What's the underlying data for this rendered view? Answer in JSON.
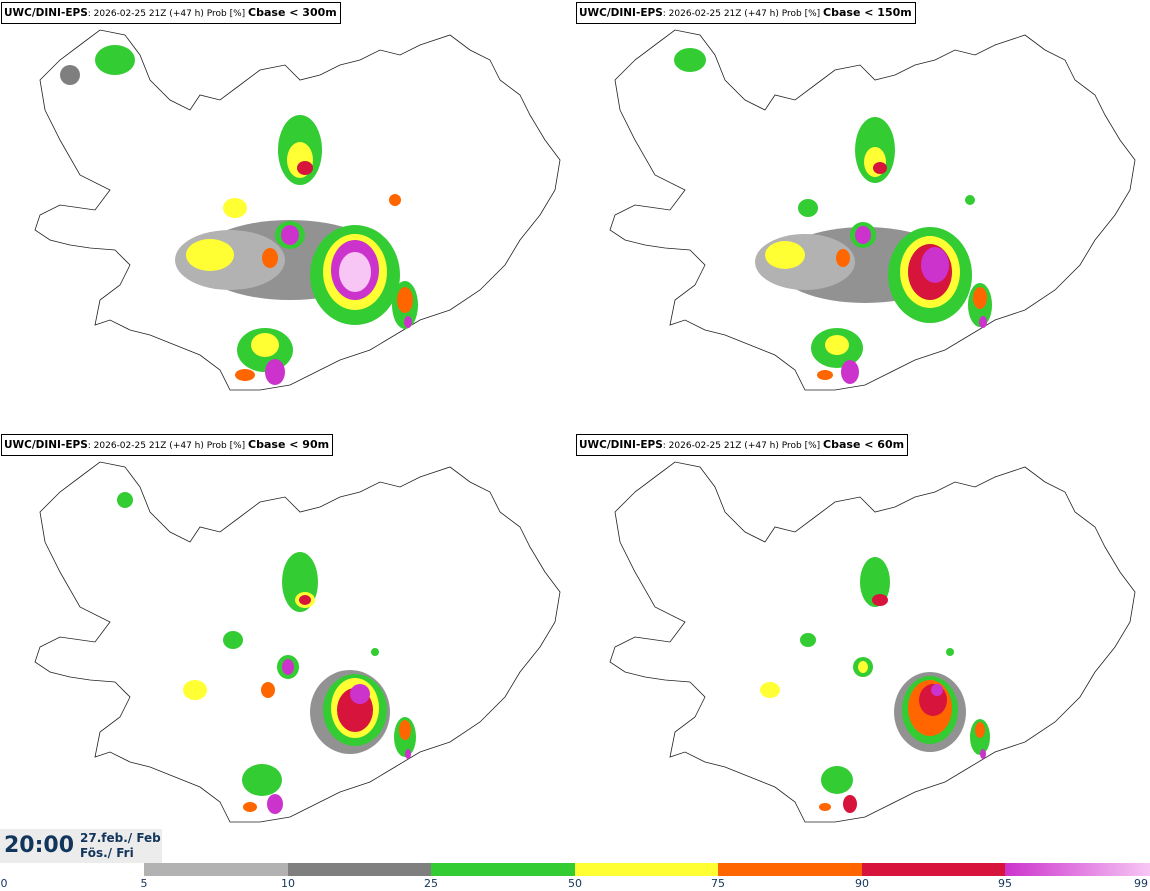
{
  "panels": [
    {
      "model": "UWC/DINI-EPS",
      "run": ": 2026-02-25 21Z (+47 h) Prob [%] ",
      "threshold": "Cbase < 300m"
    },
    {
      "model": "UWC/DINI-EPS",
      "run": ": 2026-02-25 21Z (+47 h) Prob [%] ",
      "threshold": "Cbase < 150m"
    },
    {
      "model": "UWC/DINI-EPS",
      "run": ": 2026-02-25 21Z (+47 h) Prob [%] ",
      "threshold": "Cbase < 90m"
    },
    {
      "model": "UWC/DINI-EPS",
      "run": ": 2026-02-25 21Z (+47 h) Prob [%] ",
      "threshold": "Cbase < 60m"
    }
  ],
  "valid_time": {
    "time": "20:00",
    "date": "27.feb./ Feb",
    "day": "Fös./ Fri"
  },
  "colorbar": {
    "ticks": [
      "0",
      "5",
      "10",
      "25",
      "50",
      "75",
      "90",
      "95",
      "99"
    ],
    "colors": [
      "#ffffff",
      "#b2b2b2",
      "#7f7f7f",
      "#33cc33",
      "#ffff33",
      "#ff6600",
      "#d6143c",
      "#cc33cc",
      "#f7c6f5"
    ]
  },
  "map": {
    "region": "Iceland",
    "colors": {
      "coast": "#222222",
      "contour": "#444444"
    }
  }
}
